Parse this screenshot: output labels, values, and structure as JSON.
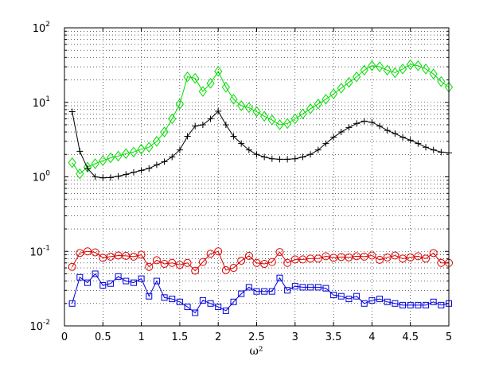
{
  "chart_data": {
    "type": "line",
    "title": "",
    "xlabel": "ω²",
    "ylabel": "",
    "xlim": [
      0,
      5
    ],
    "ylim": [
      0.01,
      100
    ],
    "yscale": "log",
    "grid": "dotted",
    "x_ticks": [
      "0",
      "0.5",
      "1",
      "1.5",
      "2",
      "2.5",
      "3",
      "3.5",
      "4",
      "4.5",
      "5"
    ],
    "y_ticks": [
      {
        "base": "10",
        "exp": "2",
        "value": 100
      },
      {
        "base": "10",
        "exp": "1",
        "value": 10
      },
      {
        "base": "10",
        "exp": "0",
        "value": 1
      },
      {
        "base": "10",
        "exp": "-1",
        "value": 0.1
      },
      {
        "base": "10",
        "exp": "-2",
        "value": 0.01
      }
    ],
    "series": [
      {
        "marker": "diamond",
        "color": "#00dd00",
        "x": [
          0.1,
          0.2,
          0.3,
          0.4,
          0.5,
          0.6,
          0.7,
          0.8,
          0.9,
          1.0,
          1.1,
          1.2,
          1.3,
          1.4,
          1.5,
          1.6,
          1.7,
          1.8,
          1.9,
          2.0,
          2.1,
          2.2,
          2.3,
          2.4,
          2.5,
          2.6,
          2.7,
          2.8,
          2.9,
          3.0,
          3.1,
          3.2,
          3.3,
          3.4,
          3.5,
          3.6,
          3.7,
          3.8,
          3.9,
          4.0,
          4.1,
          4.2,
          4.3,
          4.4,
          4.5,
          4.6,
          4.7,
          4.8,
          4.9,
          5.0
        ],
        "y": [
          1.55,
          1.1,
          1.35,
          1.5,
          1.65,
          1.8,
          1.9,
          2.05,
          2.15,
          2.35,
          2.5,
          3.0,
          4.0,
          6.0,
          9.5,
          22,
          21,
          14,
          18,
          26,
          16,
          11,
          9,
          8.5,
          7.5,
          6.5,
          5.8,
          5.0,
          5.2,
          6.0,
          7.0,
          8.2,
          9.5,
          11,
          13,
          15.5,
          18.5,
          22,
          27,
          31,
          30,
          27,
          25,
          28,
          32,
          31,
          28,
          24,
          19,
          16
        ]
      },
      {
        "marker": "plus",
        "color": "#000000",
        "x": [
          0.1,
          0.2,
          0.3,
          0.4,
          0.5,
          0.6,
          0.7,
          0.8,
          0.9,
          1.0,
          1.1,
          1.2,
          1.3,
          1.4,
          1.5,
          1.6,
          1.7,
          1.8,
          1.9,
          2.0,
          2.1,
          2.2,
          2.3,
          2.4,
          2.5,
          2.6,
          2.7,
          2.8,
          2.9,
          3.0,
          3.1,
          3.2,
          3.3,
          3.4,
          3.5,
          3.6,
          3.7,
          3.8,
          3.9,
          4.0,
          4.1,
          4.2,
          4.3,
          4.4,
          4.5,
          4.6,
          4.7,
          4.8,
          4.9,
          5.0
        ],
        "y": [
          7.5,
          2.2,
          1.3,
          1.0,
          0.97,
          0.98,
          1.02,
          1.08,
          1.15,
          1.22,
          1.3,
          1.45,
          1.6,
          1.85,
          2.3,
          3.5,
          4.8,
          5.0,
          6.0,
          7.6,
          5.0,
          3.5,
          2.8,
          2.3,
          2.0,
          1.85,
          1.75,
          1.72,
          1.72,
          1.75,
          1.85,
          2.0,
          2.3,
          2.8,
          3.4,
          4.0,
          4.6,
          5.2,
          5.6,
          5.4,
          4.8,
          4.2,
          3.8,
          3.4,
          3.1,
          2.8,
          2.5,
          2.3,
          2.15,
          2.1
        ]
      },
      {
        "marker": "circle",
        "color": "#dd0000",
        "x": [
          0.1,
          0.2,
          0.3,
          0.4,
          0.5,
          0.6,
          0.7,
          0.8,
          0.9,
          1.0,
          1.1,
          1.2,
          1.3,
          1.4,
          1.5,
          1.6,
          1.7,
          1.8,
          1.9,
          2.0,
          2.1,
          2.2,
          2.3,
          2.4,
          2.5,
          2.6,
          2.7,
          2.8,
          2.9,
          3.0,
          3.1,
          3.2,
          3.3,
          3.4,
          3.5,
          3.6,
          3.7,
          3.8,
          3.9,
          4.0,
          4.1,
          4.2,
          4.3,
          4.4,
          4.5,
          4.6,
          4.7,
          4.8,
          4.9,
          5.0
        ],
        "y": [
          0.062,
          0.095,
          0.1,
          0.097,
          0.082,
          0.085,
          0.088,
          0.087,
          0.085,
          0.09,
          0.062,
          0.076,
          0.068,
          0.07,
          0.066,
          0.07,
          0.055,
          0.072,
          0.093,
          0.1,
          0.056,
          0.06,
          0.075,
          0.087,
          0.07,
          0.068,
          0.072,
          0.098,
          0.07,
          0.078,
          0.078,
          0.08,
          0.08,
          0.086,
          0.082,
          0.084,
          0.083,
          0.086,
          0.085,
          0.088,
          0.077,
          0.083,
          0.088,
          0.08,
          0.083,
          0.086,
          0.08,
          0.095,
          0.07,
          0.07
        ]
      },
      {
        "marker": "square",
        "color": "#0000dd",
        "x": [
          0.1,
          0.2,
          0.3,
          0.4,
          0.5,
          0.6,
          0.7,
          0.8,
          0.9,
          1.0,
          1.1,
          1.2,
          1.3,
          1.4,
          1.5,
          1.6,
          1.7,
          1.8,
          1.9,
          2.0,
          2.1,
          2.2,
          2.3,
          2.4,
          2.5,
          2.6,
          2.7,
          2.8,
          2.9,
          3.0,
          3.1,
          3.2,
          3.3,
          3.4,
          3.5,
          3.6,
          3.7,
          3.8,
          3.9,
          4.0,
          4.1,
          4.2,
          4.3,
          4.4,
          4.5,
          4.6,
          4.7,
          4.8,
          4.9,
          5.0
        ],
        "y": [
          0.02,
          0.045,
          0.038,
          0.05,
          0.035,
          0.037,
          0.046,
          0.04,
          0.038,
          0.043,
          0.025,
          0.04,
          0.024,
          0.023,
          0.021,
          0.018,
          0.015,
          0.022,
          0.02,
          0.018,
          0.016,
          0.021,
          0.027,
          0.033,
          0.029,
          0.029,
          0.029,
          0.044,
          0.03,
          0.034,
          0.033,
          0.033,
          0.033,
          0.032,
          0.026,
          0.025,
          0.023,
          0.025,
          0.02,
          0.022,
          0.023,
          0.021,
          0.02,
          0.019,
          0.019,
          0.019,
          0.019,
          0.021,
          0.019,
          0.02
        ]
      }
    ]
  }
}
